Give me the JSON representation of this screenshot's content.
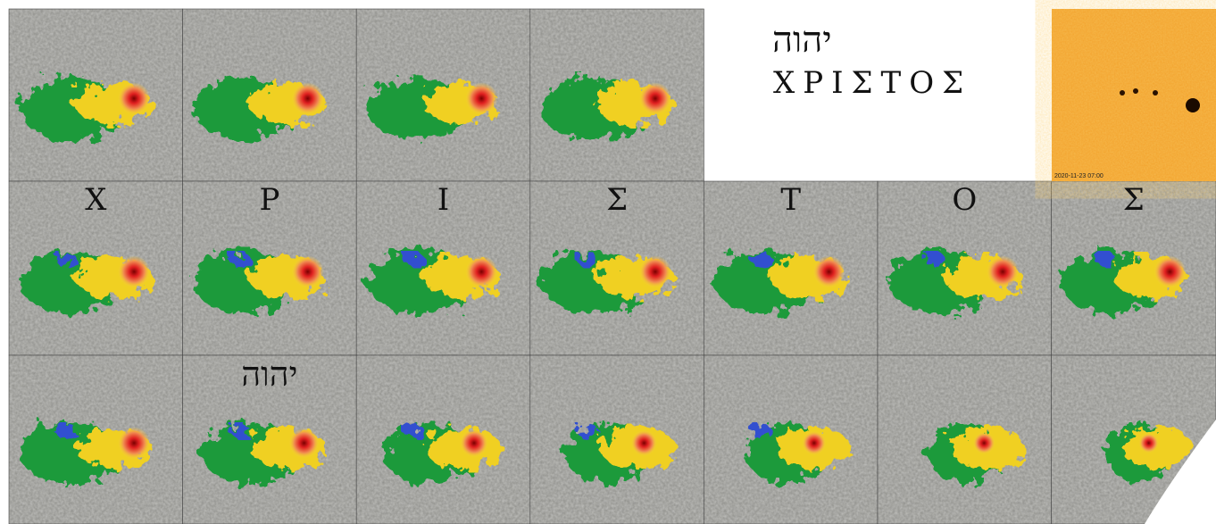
{
  "header": {
    "hebrew": "יהוה",
    "greek": "ΧΡΙΣΤΟΣ"
  },
  "row_letters": [
    "Χ",
    "Ρ",
    "Ι",
    "Σ",
    "Τ",
    "Ο",
    "Σ"
  ],
  "row3_label": "יהוה",
  "sun_timestamp": "2020-11-23 07:00"
}
